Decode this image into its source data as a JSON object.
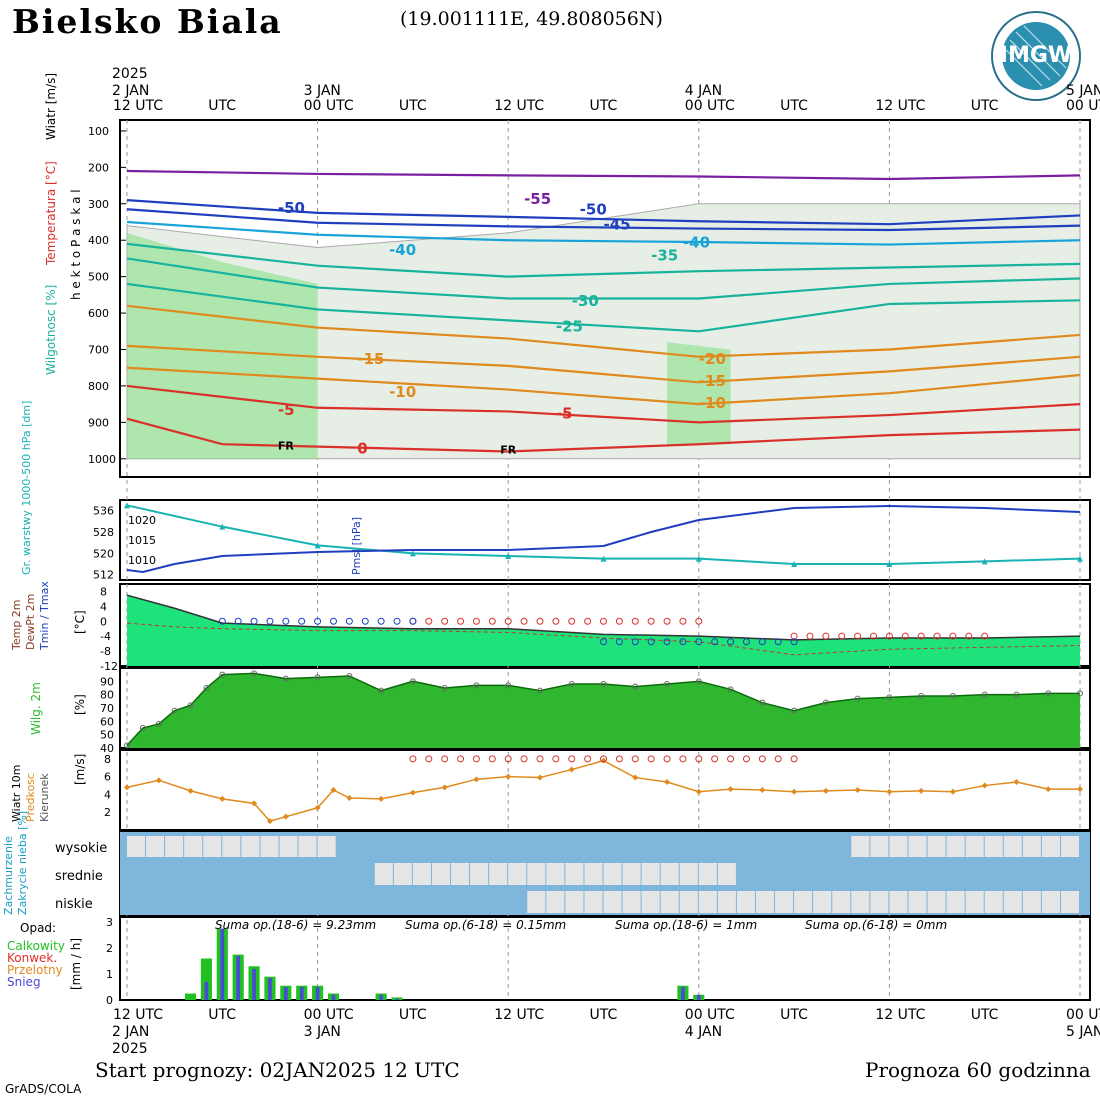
{
  "header": {
    "title": "Bielsko Biala",
    "coords": "(19.001111E, 49.808056N)",
    "logo_text": "IMGW"
  },
  "footer": {
    "start": "Start prognozy: 02JAN2025 12 UTC",
    "length": "Prognoza 60 godzinna",
    "credit": "GrADS/COLA"
  },
  "colors": {
    "purple": "#7a1fa2",
    "blue": "#1f3fbf",
    "cyan": "#1aa3d9",
    "teal": "#18b39c",
    "orange": "#e08a1e",
    "red": "#d9302a",
    "green_humidity": "#7fe07f",
    "cloud_blue": "#7eb6dc"
  },
  "time_axis": {
    "year_label": "2025",
    "top_ticks": [
      "12 UTC",
      "UTC",
      "00 UTC",
      "UTC",
      "12 UTC",
      "UTC",
      "00 UTC",
      "UTC",
      "12 UTC",
      "UTC",
      "00 UTC"
    ],
    "bottom_ticks": [
      "12 UTC",
      "UTC",
      "00 UTC",
      "UTC",
      "12 UTC",
      "UTC",
      "00 UTC",
      "UTC",
      "12 UTC",
      "UTC",
      "00 UTC"
    ],
    "date_labels": [
      "2 JAN",
      "3 JAN",
      "4 JAN",
      "5 JAN"
    ]
  },
  "chart_data": [
    {
      "type": "line",
      "name": "profile",
      "ylabel": "h e k t o P a s k a l",
      "side_labels": [
        "Wiatr [m/s]",
        "Temperatura [°C]",
        "Wilgotnosc [%]"
      ],
      "y_ticks": [
        100,
        200,
        300,
        400,
        500,
        600,
        700,
        800,
        900,
        1000
      ],
      "ylim": [
        1050,
        70
      ],
      "x_hours": [
        0,
        60
      ],
      "isotherms": [
        {
          "label": "-55",
          "color": "purple",
          "points": [
            [
              0,
              210
            ],
            [
              12,
              218
            ],
            [
              24,
              222
            ],
            [
              36,
              225
            ],
            [
              48,
              232
            ],
            [
              60,
              222
            ]
          ]
        },
        {
          "label": "-50",
          "color": "blue",
          "points": [
            [
              0,
              290
            ],
            [
              12,
              325
            ],
            [
              24,
              336
            ],
            [
              36,
              348
            ],
            [
              48,
              356
            ],
            [
              60,
              332
            ]
          ]
        },
        {
          "label": "-45",
          "color": "blue",
          "points": [
            [
              0,
              315
            ],
            [
              12,
              352
            ],
            [
              24,
              362
            ],
            [
              36,
              368
            ],
            [
              48,
              372
            ],
            [
              60,
              360
            ]
          ]
        },
        {
          "label": "-40",
          "color": "cyan",
          "points": [
            [
              0,
              350
            ],
            [
              12,
              385
            ],
            [
              24,
              400
            ],
            [
              36,
              405
            ],
            [
              48,
              412
            ],
            [
              60,
              400
            ]
          ]
        },
        {
          "label": "-35",
          "color": "teal",
          "points": [
            [
              0,
              410
            ],
            [
              12,
              470
            ],
            [
              24,
              500
            ],
            [
              36,
              485
            ],
            [
              48,
              475
            ],
            [
              60,
              465
            ]
          ]
        },
        {
          "label": "-30",
          "color": "teal",
          "points": [
            [
              0,
              450
            ],
            [
              12,
              530
            ],
            [
              24,
              560
            ],
            [
              36,
              560
            ],
            [
              48,
              520
            ],
            [
              60,
              505
            ]
          ]
        },
        {
          "label": "-25",
          "color": "teal",
          "points": [
            [
              0,
              520
            ],
            [
              12,
              590
            ],
            [
              24,
              620
            ],
            [
              36,
              650
            ],
            [
              48,
              575
            ],
            [
              60,
              565
            ]
          ]
        },
        {
          "label": "-20",
          "color": "orange",
          "points": [
            [
              0,
              580
            ],
            [
              12,
              640
            ],
            [
              24,
              670
            ],
            [
              36,
              720
            ],
            [
              48,
              700
            ],
            [
              60,
              660
            ]
          ]
        },
        {
          "label": "-15",
          "color": "orange",
          "points": [
            [
              0,
              690
            ],
            [
              12,
              720
            ],
            [
              24,
              745
            ],
            [
              36,
              790
            ],
            [
              48,
              760
            ],
            [
              60,
              720
            ]
          ]
        },
        {
          "label": "-10",
          "color": "orange",
          "points": [
            [
              0,
              750
            ],
            [
              12,
              780
            ],
            [
              24,
              810
            ],
            [
              36,
              850
            ],
            [
              48,
              820
            ],
            [
              60,
              770
            ]
          ]
        },
        {
          "label": "-5",
          "color": "red",
          "points": [
            [
              0,
              800
            ],
            [
              12,
              860
            ],
            [
              24,
              870
            ],
            [
              36,
              900
            ],
            [
              48,
              880
            ],
            [
              60,
              850
            ]
          ]
        },
        {
          "label": "0",
          "color": "red",
          "points": [
            [
              0,
              890
            ],
            [
              6,
              960
            ],
            [
              24,
              980
            ],
            [
              36,
              960
            ],
            [
              48,
              935
            ],
            [
              60,
              920
            ]
          ]
        }
      ],
      "labels_placed": [
        {
          "text": "-55",
          "hour": 25,
          "p": 300,
          "color": "purple"
        },
        {
          "text": "-50",
          "hour": 9.5,
          "p": 325,
          "color": "blue"
        },
        {
          "text": "-50",
          "hour": 28.5,
          "p": 330,
          "color": "blue"
        },
        {
          "text": "-45",
          "hour": 30,
          "p": 370,
          "color": "blue"
        },
        {
          "text": "-40",
          "hour": 16.5,
          "p": 440,
          "color": "cyan"
        },
        {
          "text": "-40",
          "hour": 35,
          "p": 420,
          "color": "cyan"
        },
        {
          "text": "-35",
          "hour": 33,
          "p": 455,
          "color": "teal"
        },
        {
          "text": "-30",
          "hour": 28,
          "p": 580,
          "color": "teal"
        },
        {
          "text": "-25",
          "hour": 27,
          "p": 650,
          "color": "teal"
        },
        {
          "text": "-20",
          "hour": 36,
          "p": 740,
          "color": "orange"
        },
        {
          "text": "-15",
          "hour": 14.5,
          "p": 740,
          "color": "orange"
        },
        {
          "text": "-15",
          "hour": 36,
          "p": 800,
          "color": "orange"
        },
        {
          "text": "-10",
          "hour": 16.5,
          "p": 830,
          "color": "orange"
        },
        {
          "text": "-10",
          "hour": 36,
          "p": 860,
          "color": "orange"
        },
        {
          "text": "-5",
          "hour": 9.5,
          "p": 880,
          "color": "red"
        },
        {
          "text": "-5",
          "hour": 27,
          "p": 890,
          "color": "red"
        },
        {
          "text": "0",
          "hour": 14.5,
          "p": 985,
          "color": "red"
        }
      ],
      "annotations": [
        {
          "text": "FR",
          "hour": 9.5,
          "p": 975
        },
        {
          "text": "FR",
          "hour": 23.5,
          "p": 985
        }
      ]
    },
    {
      "type": "line",
      "name": "pressure",
      "left_label": "Gr. warstwy 1000-500 hPa [dm]",
      "right_label": "Pmsl [hPa]",
      "left_ticks": [
        512,
        520,
        528,
        536
      ],
      "right_ticks": [
        1010,
        1015,
        1020
      ],
      "series": [
        {
          "name": "Gr. warstwy",
          "color": "#1ab3b3",
          "x": [
            0,
            6,
            12,
            18,
            24,
            30,
            36,
            42,
            48,
            54,
            60
          ],
          "values": [
            538,
            530,
            523,
            520,
            519,
            518,
            518,
            516,
            516,
            517,
            518
          ]
        },
        {
          "name": "Pmsl",
          "color": "#1f3fbf",
          "x": [
            0,
            1,
            3,
            6,
            12,
            18,
            24,
            27,
            30,
            33,
            36,
            42,
            48,
            54,
            60
          ],
          "values": [
            1007.5,
            1007,
            1009,
            1011,
            1012,
            1012.5,
            1012.5,
            1013,
            1013.5,
            1017,
            1020,
            1023,
            1023.5,
            1023,
            1022
          ]
        }
      ]
    },
    {
      "type": "area",
      "name": "temperature",
      "side_labels": [
        "Temp 2m",
        "DewPt 2m",
        "Tmin / Tmax"
      ],
      "unit": "[°C]",
      "y_ticks": [
        8,
        4,
        0,
        -4,
        -8,
        -12
      ],
      "series": [
        {
          "name": "Temp 2m",
          "x": [
            0,
            3,
            6,
            12,
            18,
            24,
            30,
            36,
            42,
            48,
            54,
            60
          ],
          "values": [
            7,
            3.5,
            -0.5,
            -1.5,
            -2,
            -2,
            -3.5,
            -4,
            -5,
            -4.5,
            -4.5,
            -4
          ]
        },
        {
          "name": "DewPt 2m",
          "x": [
            0,
            3,
            6,
            12,
            18,
            24,
            30,
            36,
            42,
            48,
            54,
            60
          ],
          "values": [
            -0.5,
            -1.5,
            -2,
            -2.5,
            -2.5,
            -3,
            -4.5,
            -5.5,
            -9,
            -7.5,
            -7,
            -6.5
          ]
        },
        {
          "name": "Tmax",
          "x": [
            18,
            36
          ],
          "values": [
            0,
            0
          ]
        },
        {
          "name": "Tmin",
          "x": [
            6,
            18
          ],
          "values": [
            0,
            0
          ]
        },
        {
          "name": "Tmax2",
          "x": [
            42,
            54
          ],
          "values": [
            -4,
            -4
          ]
        },
        {
          "name": "Tmin2",
          "x": [
            30,
            42
          ],
          "values": [
            -5.5,
            -5.5
          ]
        }
      ]
    },
    {
      "type": "area",
      "name": "humidity",
      "side_label": "Wilg. 2m",
      "unit": "[%]",
      "y_ticks": [
        40,
        50,
        60,
        70,
        80,
        90
      ],
      "x": [
        0,
        1,
        2,
        3,
        4,
        5,
        6,
        8,
        10,
        12,
        14,
        16,
        18,
        20,
        22,
        24,
        26,
        28,
        30,
        32,
        34,
        36,
        38,
        40,
        42,
        44,
        46,
        48,
        50,
        52,
        54,
        56,
        58,
        60
      ],
      "values": [
        42,
        55,
        58,
        68,
        72,
        85,
        95,
        96,
        92,
        93,
        94,
        83,
        90,
        85,
        87,
        87,
        83,
        88,
        88,
        86,
        88,
        90,
        84,
        74,
        68,
        74,
        77,
        78,
        79,
        79,
        80,
        80,
        81,
        81
      ]
    },
    {
      "type": "line",
      "name": "wind",
      "side_labels": [
        "Wiatr 10m",
        "Predkosc",
        "Kierunek"
      ],
      "unit": "[m/s]",
      "y_ticks": [
        2,
        4,
        6,
        8
      ],
      "x": [
        0,
        2,
        4,
        6,
        8,
        9,
        10,
        12,
        13,
        14,
        16,
        18,
        20,
        22,
        24,
        26,
        28,
        30,
        32,
        34,
        36,
        38,
        40,
        42,
        44,
        46,
        48,
        50,
        52,
        54,
        56,
        58,
        60
      ],
      "values": [
        4.8,
        5.6,
        4.4,
        3.5,
        3.0,
        1.0,
        1.5,
        2.5,
        4.5,
        3.6,
        3.5,
        4.2,
        4.8,
        5.7,
        6.0,
        5.9,
        6.8,
        7.8,
        5.9,
        5.4,
        4.3,
        4.6,
        4.5,
        4.3,
        4.4,
        4.5,
        4.3,
        4.4,
        4.3,
        5.0,
        5.4,
        4.6,
        4.6
      ],
      "gust_series": {
        "x": [
          18,
          42
        ],
        "values": [
          8,
          8
        ]
      }
    },
    {
      "type": "area",
      "name": "clouds",
      "side_labels": [
        "Zachmurzenie",
        "Zakrycie nieba [%]"
      ],
      "levels": [
        "wysokie",
        "srednie",
        "niskie"
      ]
    },
    {
      "type": "bar",
      "name": "precipitation",
      "legend_title": "Opad:",
      "legend": [
        {
          "name": "Calkowity",
          "color": "#22c122"
        },
        {
          "name": "Konwek.",
          "color": "#e0302a"
        },
        {
          "name": "Przelotny",
          "color": "#e08a1e"
        },
        {
          "name": "Snieg",
          "color": "#4a4ad9"
        }
      ],
      "unit": "[mm / h]",
      "y_ticks": [
        0,
        1,
        2,
        3
      ],
      "sums": [
        "Suma op.(18-6) = 9.23mm",
        "Suma op.(6-18) = 0.15mm",
        "Suma op.(18-6) = 1mm",
        "Suma op.(6-18) = 0mm"
      ],
      "x": [
        4,
        5,
        6,
        7,
        8,
        9,
        10,
        11,
        12,
        13,
        16,
        17,
        35,
        36
      ],
      "values": [
        0.25,
        1.6,
        2.75,
        1.75,
        1.3,
        0.9,
        0.55,
        0.55,
        0.55,
        0.25,
        0.25,
        0.1,
        0.55,
        0.2
      ],
      "snow": [
        0,
        0.7,
        2.75,
        1.7,
        1.2,
        0.85,
        0.5,
        0.5,
        0.5,
        0.2,
        0.2,
        0.05,
        0.5,
        0.2
      ]
    }
  ]
}
